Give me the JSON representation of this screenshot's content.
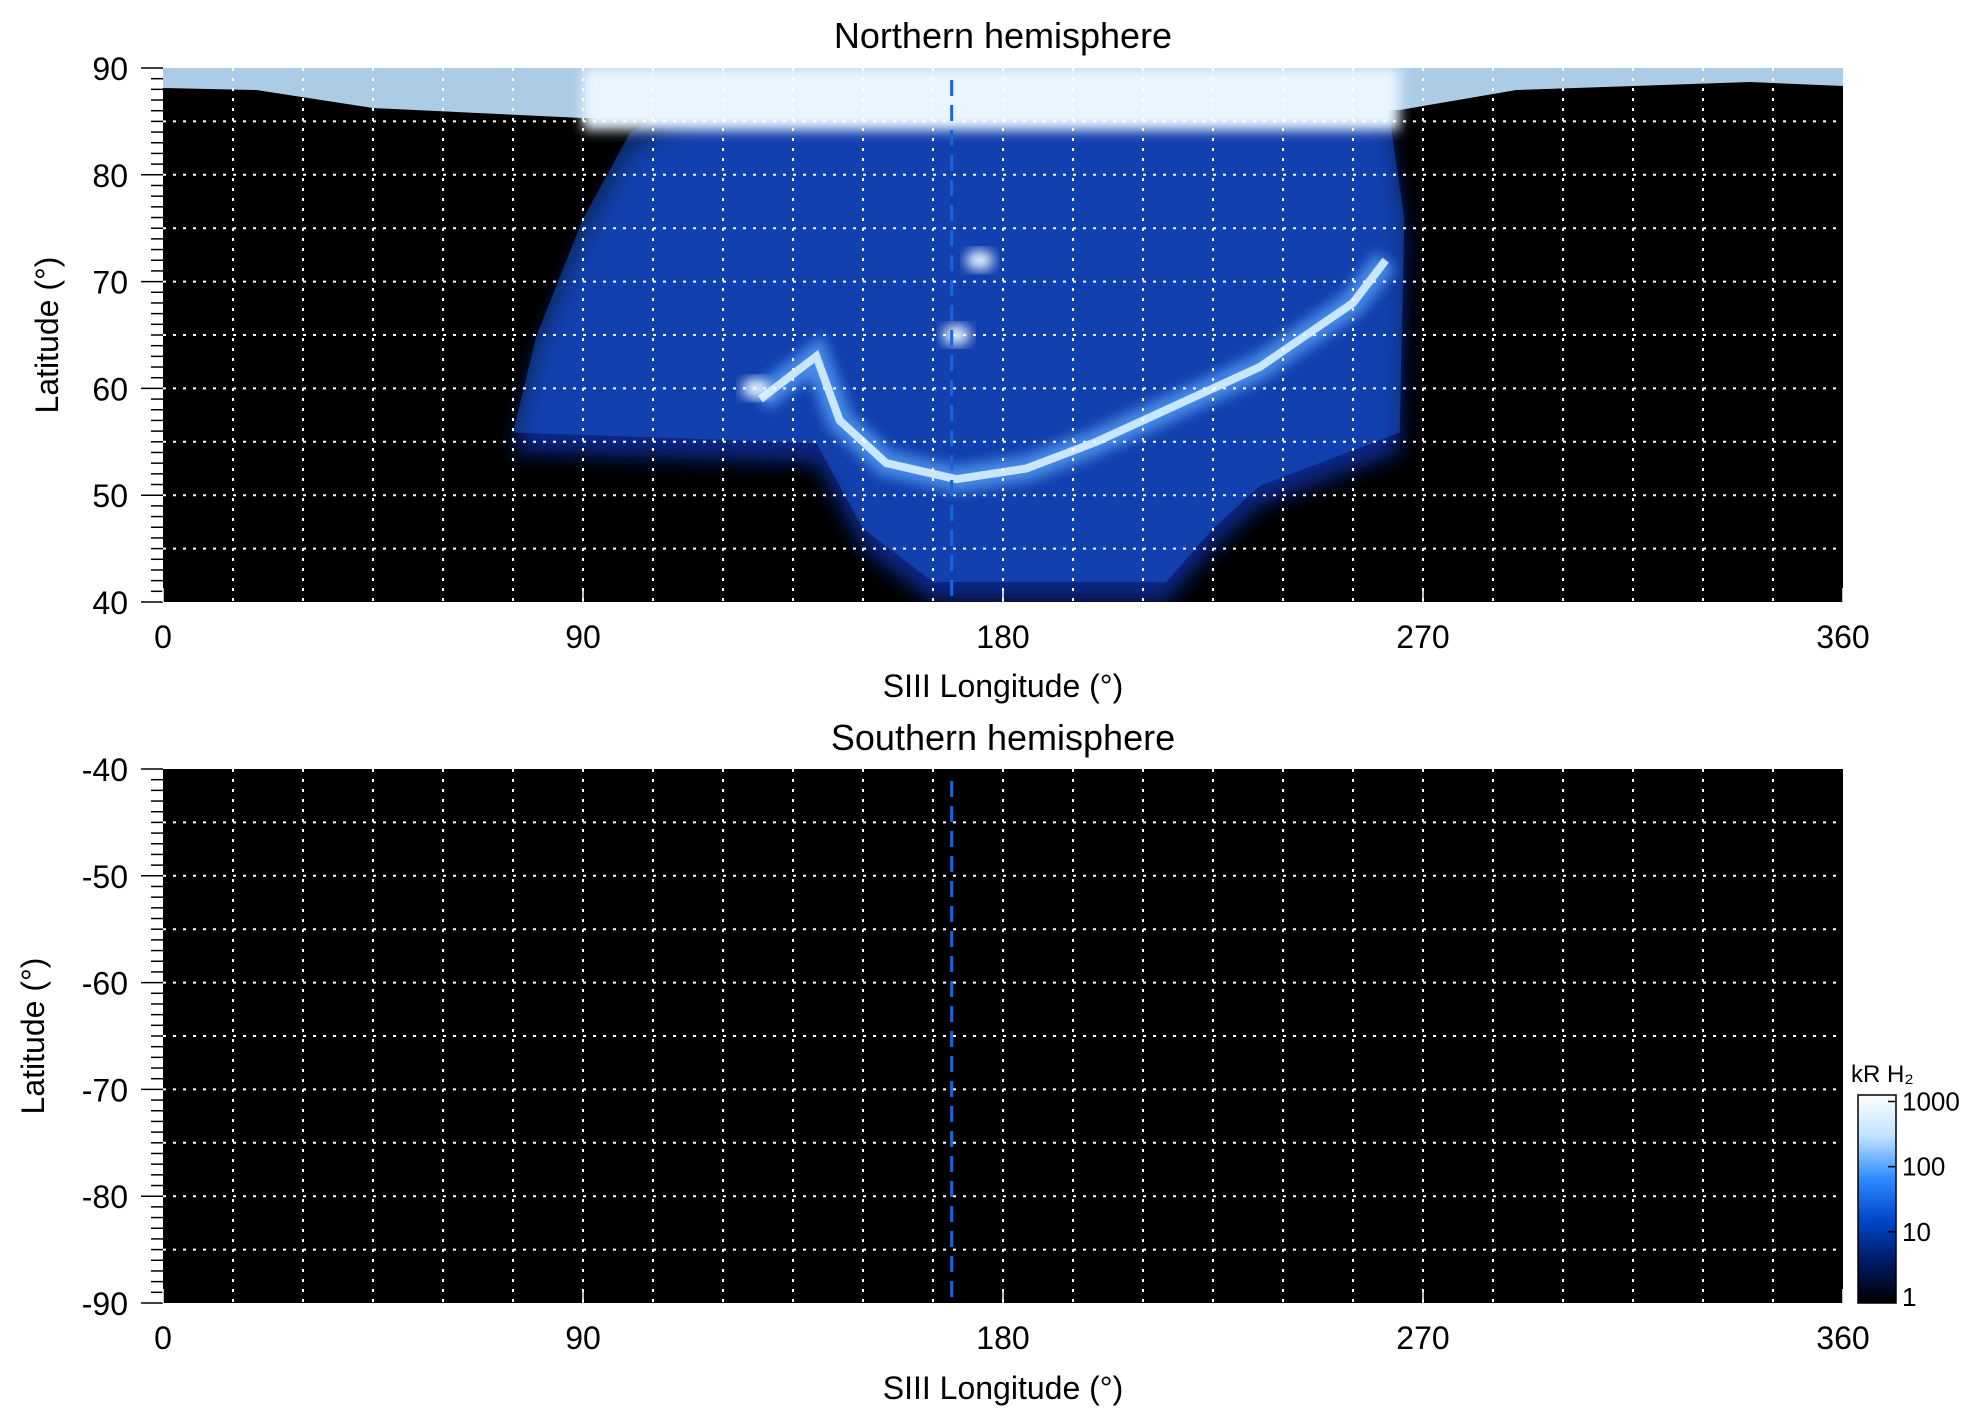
{
  "chart_data": [
    {
      "type": "heatmap",
      "title": "Northern hemisphere",
      "xlabel": "SIII Longitude (°)",
      "ylabel": "Latitude (°)",
      "xlim": [
        0,
        360
      ],
      "ylim": [
        40,
        90
      ],
      "x_ticks": [
        "0",
        "90",
        "180",
        "270",
        "360"
      ],
      "y_ticks": [
        "40",
        "50",
        "60",
        "70",
        "80",
        "90"
      ],
      "grid": true,
      "reference_longitude": 169,
      "emission_region": {
        "longitude_range": [
          75,
          265
        ],
        "outer_edge": [
          [
            75,
            54
          ],
          [
            80,
            63
          ],
          [
            90,
            74
          ],
          [
            100,
            82
          ],
          [
            115,
            86
          ],
          [
            140,
            88
          ],
          [
            160,
            89
          ],
          [
            180,
            89
          ],
          [
            210,
            89
          ],
          [
            240,
            88
          ],
          [
            262,
            86
          ],
          [
            266,
            74
          ],
          [
            265,
            54
          ]
        ],
        "low_latitude_cap": [
          [
            140,
            53
          ],
          [
            150,
            45
          ],
          [
            165,
            40
          ],
          [
            215,
            40
          ],
          [
            225,
            45
          ],
          [
            235,
            49
          ]
        ],
        "polar_band_latitude": 87
      },
      "main_oval": [
        [
          128,
          59
        ],
        [
          140,
          63
        ],
        [
          145,
          57
        ],
        [
          155,
          53
        ],
        [
          170,
          51.5
        ],
        [
          185,
          52.5
        ],
        [
          200,
          55
        ],
        [
          215,
          58
        ],
        [
          235,
          62
        ],
        [
          255,
          68
        ],
        [
          262,
          72
        ]
      ],
      "bright_features": [
        {
          "longitude": 175,
          "latitude": 72
        },
        {
          "longitude": 170,
          "latitude": 65
        },
        {
          "longitude": 127,
          "latitude": 60
        }
      ]
    },
    {
      "type": "heatmap",
      "title": "Southern hemisphere",
      "xlabel": "SIII Longitude (°)",
      "ylabel": "Latitude (°)",
      "xlim": [
        0,
        360
      ],
      "ylim": [
        -90,
        -40
      ],
      "x_ticks": [
        "0",
        "90",
        "180",
        "270",
        "360"
      ],
      "y_ticks": [
        "-40",
        "-50",
        "-60",
        "-70",
        "-80",
        "-90"
      ],
      "grid": true,
      "reference_longitude": 169,
      "emission_region": null
    }
  ],
  "colorbar": {
    "label": "kR H₂",
    "scale": "log",
    "range": [
      1,
      1000
    ],
    "ticks": [
      "1",
      "10",
      "100",
      "1000"
    ],
    "colors": [
      "#000000",
      "#001a66",
      "#0047c8",
      "#2d8cff",
      "#bfe2ff",
      "#ffffff"
    ]
  }
}
